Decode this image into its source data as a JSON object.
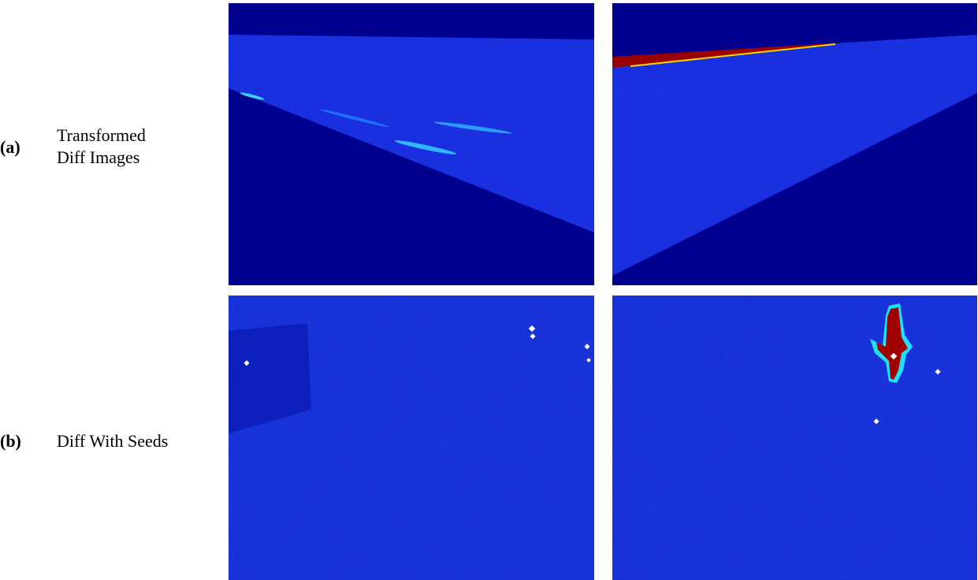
{
  "rows": [
    {
      "label": "(a)",
      "caption_lines": [
        "Transformed",
        "Diff Images"
      ]
    },
    {
      "label": "(b)",
      "caption_lines": [
        "Diff With Seeds"
      ]
    }
  ]
}
